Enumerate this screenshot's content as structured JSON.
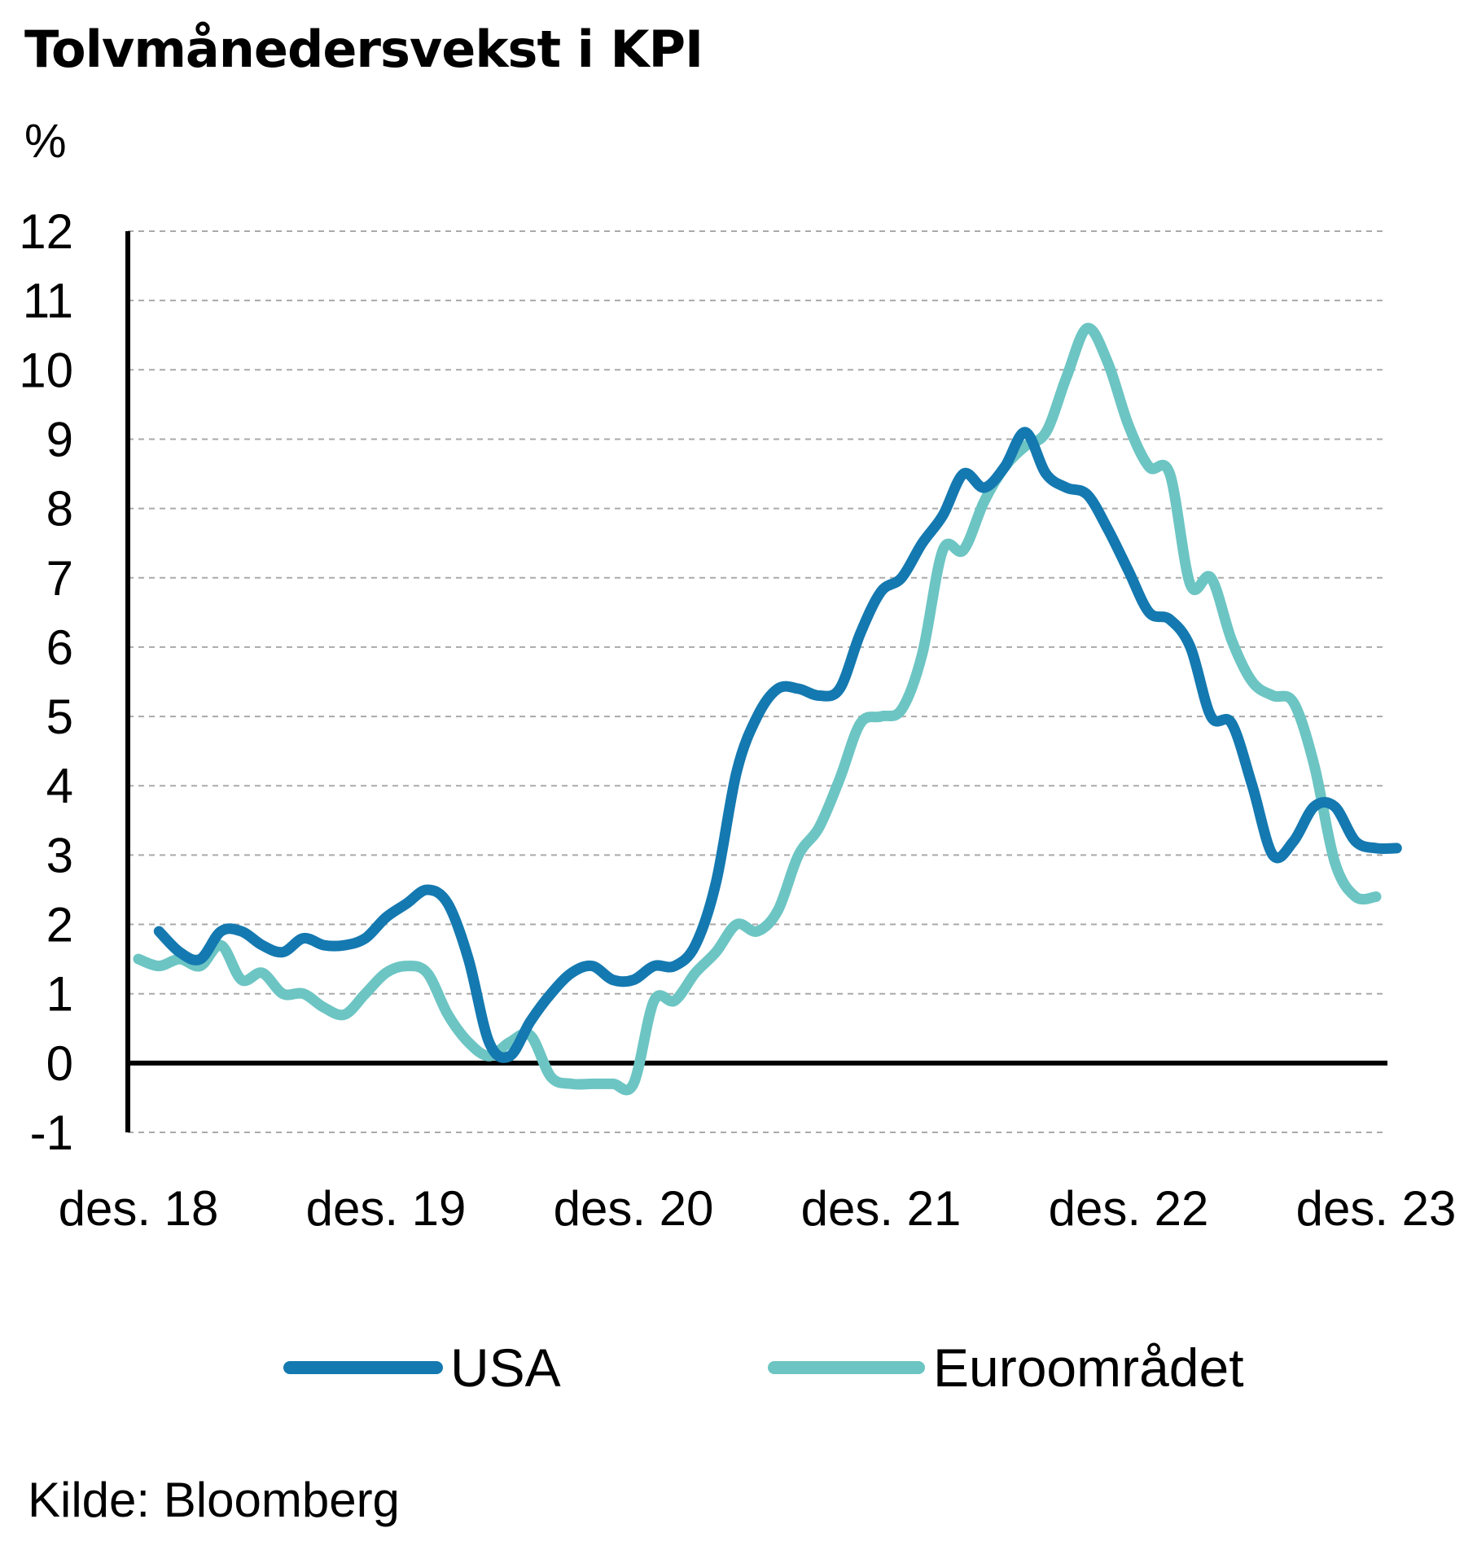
{
  "title": "Tolvmånedersvekst i KPI",
  "unit": "%",
  "source": "Kilde: Bloomberg",
  "colors": {
    "usa": "#1479b0",
    "euro": "#6cc5c3",
    "grid": "#aaaaaa",
    "axis": "#000000"
  },
  "chart_data": {
    "type": "line",
    "title": "Tolvmånedersvekst i KPI",
    "ylabel": "%",
    "ylim": [
      -1,
      12
    ],
    "yticks": [
      12,
      11,
      10,
      9,
      8,
      7,
      6,
      5,
      4,
      3,
      2,
      1,
      0,
      -1
    ],
    "xticks": [
      {
        "label": "des. 18",
        "date": "2018-12"
      },
      {
        "label": "des. 19",
        "date": "2019-12"
      },
      {
        "label": "des. 20",
        "date": "2020-12"
      },
      {
        "label": "des. 21",
        "date": "2021-12"
      },
      {
        "label": "des. 22",
        "date": "2022-12"
      },
      {
        "label": "des. 23",
        "date": "2023-12"
      }
    ],
    "grid": true,
    "legend": "bottom",
    "series": [
      {
        "name": "USA",
        "key": "usa",
        "start": "2019-01",
        "values": [
          1.9,
          1.6,
          1.5,
          1.9,
          1.9,
          1.7,
          1.6,
          1.8,
          1.7,
          1.7,
          1.8,
          2.1,
          2.3,
          2.5,
          2.3,
          1.5,
          0.3,
          0.1,
          0.6,
          1.0,
          1.3,
          1.4,
          1.2,
          1.2,
          1.4,
          1.4,
          1.7,
          2.6,
          4.2,
          5.0,
          5.4,
          5.4,
          5.3,
          5.4,
          6.2,
          6.8,
          7.0,
          7.5,
          7.9,
          8.5,
          8.3,
          8.6,
          9.1,
          8.5,
          8.3,
          8.2,
          7.7,
          7.1,
          6.5,
          6.4,
          6.0,
          5.0,
          4.9,
          4.0,
          3.0,
          3.2,
          3.7,
          3.7,
          3.2,
          3.1,
          3.1
        ]
      },
      {
        "name": "Euroområdet",
        "key": "euro",
        "start": "2018-12",
        "values": [
          1.5,
          1.4,
          1.5,
          1.4,
          1.7,
          1.2,
          1.3,
          1.0,
          1.0,
          0.8,
          0.7,
          1.0,
          1.3,
          1.4,
          1.3,
          0.7,
          0.3,
          0.1,
          0.3,
          0.4,
          -0.2,
          -0.3,
          -0.3,
          -0.3,
          -0.3,
          0.9,
          0.9,
          1.3,
          1.6,
          2.0,
          1.9,
          2.2,
          3.0,
          3.4,
          4.1,
          4.9,
          5.0,
          5.1,
          5.9,
          7.4,
          7.4,
          8.1,
          8.6,
          8.9,
          9.1,
          9.9,
          10.6,
          10.1,
          9.2,
          8.6,
          8.5,
          6.9,
          7.0,
          6.1,
          5.5,
          5.3,
          5.2,
          4.3,
          2.9,
          2.4,
          2.4
        ]
      }
    ]
  },
  "legend": {
    "items": [
      {
        "label": "USA",
        "key": "usa"
      },
      {
        "label": "Euroområdet",
        "key": "euro"
      }
    ]
  }
}
